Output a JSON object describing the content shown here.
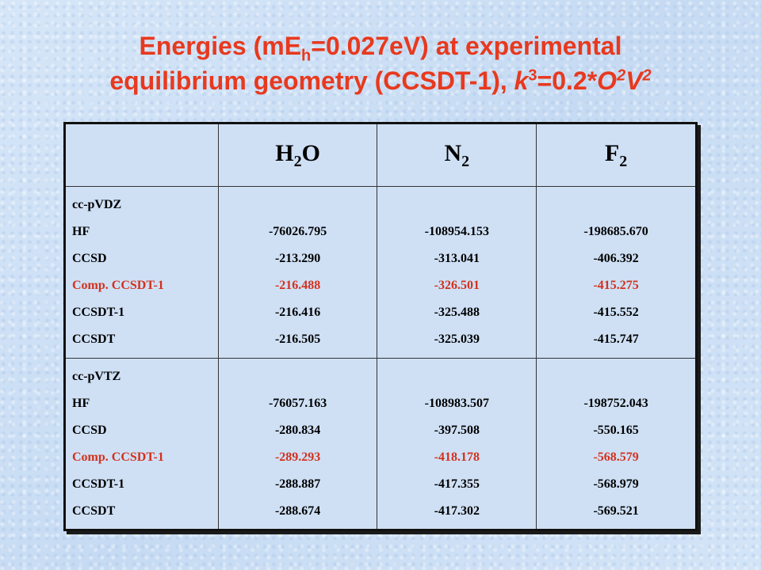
{
  "title": {
    "line1_pre": "Energies (mE",
    "line1_sub": "h",
    "line1_post": "=0.027eV) at experimental",
    "line2_pre": "equilibrium geometry  (CCSDT-1), ",
    "line2_k": "k",
    "line2_k_sup": "3",
    "line2_mid": "=0.2*",
    "line2_O": "O",
    "line2_O_sup": "2",
    "line2_V": "V",
    "line2_V_sup": "2"
  },
  "table": {
    "headers": [
      {
        "main": "H",
        "sub": "2",
        "post": "O"
      },
      {
        "main": "N",
        "sub": "2",
        "post": ""
      },
      {
        "main": "F",
        "sub": "2",
        "post": ""
      }
    ],
    "blocks": [
      {
        "basis": "cc-pVDZ",
        "methods": [
          "HF",
          "CCSD",
          "Comp. CCSDT-1",
          "CCSDT-1",
          "CCSDT"
        ],
        "h2o": [
          "-76026.795",
          "-213.290",
          "-216.488",
          "-216.416",
          "-216.505"
        ],
        "n2": [
          "-108954.153",
          "-313.041",
          "-326.501",
          "-325.488",
          "-325.039"
        ],
        "f2": [
          "-198685.670",
          "-406.392",
          "-415.275",
          "-415.552",
          "-415.747"
        ]
      },
      {
        "basis": "cc-pVTZ",
        "methods": [
          "HF",
          "CCSD",
          "Comp. CCSDT-1",
          "CCSDT-1",
          "CCSDT"
        ],
        "h2o": [
          "-76057.163",
          "-280.834",
          "-289.293",
          "-288.887",
          "-288.674"
        ],
        "n2": [
          "-108983.507",
          "-397.508",
          "-418.178",
          "-417.355",
          "-417.302"
        ],
        "f2": [
          "-198752.043",
          "-550.165",
          "-568.579",
          "-568.979",
          "-569.521"
        ]
      }
    ]
  },
  "colors": {
    "title": "#e8391e",
    "highlight": "#d3311d",
    "background": "#cfe0f5",
    "text": "#000000"
  }
}
